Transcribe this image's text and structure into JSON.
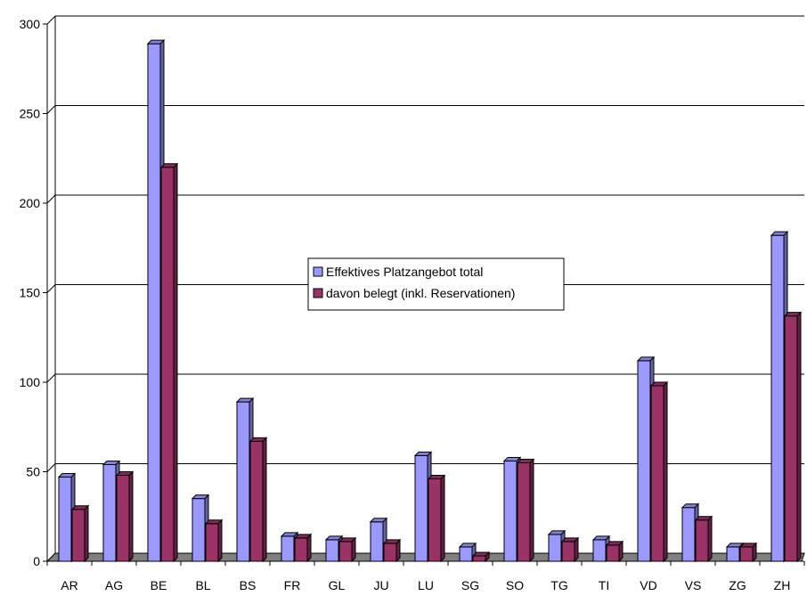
{
  "chart_data": {
    "type": "bar",
    "title": "",
    "xlabel": "",
    "ylabel": "",
    "ylim": [
      0,
      300
    ],
    "yticks": [
      0,
      50,
      100,
      150,
      200,
      250,
      300
    ],
    "grid": true,
    "legend_position": "center",
    "categories": [
      "AR",
      "AG",
      "BE",
      "BL",
      "BS",
      "FR",
      "GL",
      "JU",
      "LU",
      "SG",
      "SO",
      "TG",
      "TI",
      "VD",
      "VS",
      "ZG",
      "ZH"
    ],
    "series": [
      {
        "name": "Effektives Platzangebot total",
        "color": "#9999ff",
        "values": [
          47,
          54,
          289,
          35,
          89,
          14,
          12,
          22,
          59,
          8,
          56,
          15,
          12,
          112,
          30,
          8,
          182
        ]
      },
      {
        "name": "davon belegt (inkl. Reservationen)",
        "color": "#993366",
        "values": [
          29,
          48,
          220,
          21,
          67,
          13,
          11,
          10,
          46,
          3,
          55,
          11,
          9,
          98,
          23,
          8,
          137
        ]
      }
    ]
  }
}
